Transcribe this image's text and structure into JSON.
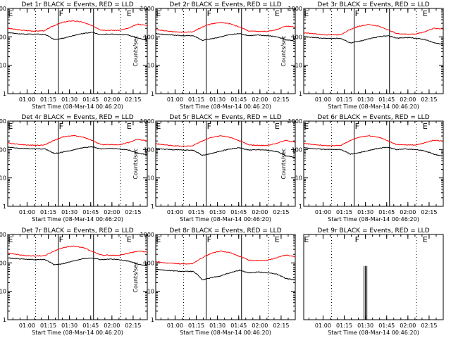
{
  "chart_data": [
    {
      "type": "line",
      "title": "Det 1r BLACK = Events, RED = LLD",
      "xlabel": "Start Time (08-Mar-14 00:46:20)",
      "ylabel": "Counts/sec",
      "yscale": "log",
      "ylim": [
        1,
        1000
      ],
      "xticks": [
        "01:00",
        "01:15",
        "01:30",
        "01:45",
        "02:00",
        "02:15"
      ],
      "yticks": [
        "1",
        "10",
        "100",
        "1000"
      ],
      "markers": [
        {
          "label": "E",
          "time": "00:46"
        },
        {
          "label": "F",
          "time": "01:22"
        },
        {
          "label": "E",
          "time": "02:10"
        }
      ],
      "dotted_lines": [
        "01:06",
        "02:06"
      ],
      "solid_lines": [
        "01:22",
        "01:47"
      ],
      "series": [
        {
          "color": "#ff0000",
          "values": [
            200,
            180,
            165,
            160,
            165,
            250,
            330,
            370,
            330,
            250,
            175,
            170,
            170,
            200,
            280,
            250
          ]
        },
        {
          "color": "#000000",
          "values": [
            140,
            130,
            125,
            125,
            120,
            80,
            90,
            110,
            130,
            145,
            120,
            125,
            120,
            115,
            90,
            75
          ]
        }
      ]
    },
    {
      "type": "line",
      "title": "Det 2r BLACK = Events, RED = LLD",
      "xlabel": "Start Time (08-Mar-14 00:46:20)",
      "ylabel": "Counts/sec",
      "yscale": "log",
      "ylim": [
        1,
        1000
      ],
      "xticks": [
        "01:00",
        "01:15",
        "01:30",
        "01:45",
        "02:00",
        "02:15"
      ],
      "yticks": [
        "1",
        "10",
        "100",
        "1000"
      ],
      "markers": [
        {
          "label": "E",
          "time": "00:46"
        },
        {
          "label": "F",
          "time": "01:22"
        },
        {
          "label": "E",
          "time": "02:10"
        }
      ],
      "dotted_lines": [
        "01:06",
        "02:06"
      ],
      "solid_lines": [
        "01:22",
        "01:47"
      ],
      "series": [
        {
          "color": "#ff0000",
          "values": [
            180,
            165,
            150,
            145,
            150,
            220,
            290,
            320,
            290,
            220,
            160,
            155,
            155,
            180,
            240,
            220
          ]
        },
        {
          "color": "#000000",
          "values": [
            130,
            120,
            115,
            110,
            110,
            75,
            85,
            100,
            120,
            130,
            110,
            115,
            110,
            100,
            80,
            70
          ]
        }
      ]
    },
    {
      "type": "line",
      "title": "Det 3r BLACK = Events, RED = LLD",
      "xlabel": "Start Time (08-Mar-14 00:46:20)",
      "ylabel": "Counts/sec",
      "yscale": "log",
      "ylim": [
        1,
        1000
      ],
      "xticks": [
        "01:00",
        "01:15",
        "01:30",
        "01:45",
        "02:00",
        "02:15"
      ],
      "yticks": [
        "1",
        "10",
        "100",
        "1000"
      ],
      "markers": [
        {
          "label": "E",
          "time": "00:46"
        },
        {
          "label": "F",
          "time": "01:22"
        },
        {
          "label": "E",
          "time": "02:10"
        }
      ],
      "dotted_lines": [
        "01:06",
        "02:06"
      ],
      "solid_lines": [
        "01:22",
        "01:47"
      ],
      "series": [
        {
          "color": "#ff0000",
          "values": [
            140,
            130,
            120,
            118,
            120,
            180,
            240,
            270,
            240,
            180,
            130,
            125,
            125,
            150,
            200,
            190
          ]
        },
        {
          "color": "#000000",
          "values": [
            100,
            95,
            90,
            88,
            88,
            60,
            70,
            85,
            100,
            110,
            90,
            95,
            90,
            80,
            62,
            55
          ]
        }
      ]
    },
    {
      "type": "line",
      "title": "Det 4r BLACK = Events, RED = LLD",
      "xlabel": "Start Time (08-Mar-14 00:46:20)",
      "ylabel": "Counts/sec",
      "yscale": "log",
      "ylim": [
        1,
        1000
      ],
      "xticks": [
        "01:00",
        "01:15",
        "01:30",
        "01:45",
        "02:00",
        "02:15"
      ],
      "yticks": [
        "1",
        "10",
        "100",
        "1000"
      ],
      "markers": [
        {
          "label": "E",
          "time": "00:46"
        },
        {
          "label": "F",
          "time": "01:22"
        },
        {
          "label": "E",
          "time": "02:10"
        }
      ],
      "dotted_lines": [
        "01:06",
        "02:06"
      ],
      "solid_lines": [
        "01:22",
        "01:47"
      ],
      "series": [
        {
          "color": "#ff0000",
          "values": [
            170,
            155,
            145,
            140,
            145,
            210,
            280,
            310,
            280,
            210,
            150,
            148,
            148,
            175,
            230,
            200
          ]
        },
        {
          "color": "#000000",
          "values": [
            120,
            112,
            108,
            105,
            105,
            72,
            82,
            96,
            115,
            125,
            105,
            110,
            105,
            95,
            75,
            65
          ]
        }
      ]
    },
    {
      "type": "line",
      "title": "Det 5r BLACK = Events, RED = LLD",
      "xlabel": "Start Time (08-Mar-14 00:46:20)",
      "ylabel": "Counts/sec",
      "yscale": "log",
      "ylim": [
        1,
        1000
      ],
      "xticks": [
        "01:00",
        "01:15",
        "01:30",
        "01:45",
        "02:00",
        "02:15"
      ],
      "yticks": [
        "1",
        "10",
        "100",
        "1000"
      ],
      "markers": [
        {
          "label": "E",
          "time": "00:46"
        },
        {
          "label": "F",
          "time": "01:22"
        },
        {
          "label": "E",
          "time": "02:10"
        }
      ],
      "dotted_lines": [
        "01:06",
        "02:06"
      ],
      "solid_lines": [
        "01:22",
        "01:47"
      ],
      "series": [
        {
          "color": "#ff0000",
          "values": [
            160,
            145,
            135,
            130,
            135,
            200,
            270,
            300,
            270,
            200,
            145,
            140,
            140,
            165,
            210,
            180
          ]
        },
        {
          "color": "#000000",
          "values": [
            110,
            102,
            98,
            95,
            95,
            62,
            72,
            88,
            105,
            115,
            95,
            100,
            95,
            85,
            60,
            52
          ]
        }
      ]
    },
    {
      "type": "line",
      "title": "Det 6r BLACK = Events, RED = LLD",
      "xlabel": "Start Time (08-Mar-14 00:46:20)",
      "ylabel": "Counts/sec",
      "yscale": "log",
      "ylim": [
        1,
        1000
      ],
      "xticks": [
        "01:00",
        "01:15",
        "01:30",
        "01:45",
        "02:00",
        "02:15"
      ],
      "yticks": [
        "1",
        "10",
        "100",
        "1000"
      ],
      "markers": [
        {
          "label": "E",
          "time": "00:46"
        },
        {
          "label": "F",
          "time": "01:22"
        },
        {
          "label": "E",
          "time": "02:10"
        }
      ],
      "dotted_lines": [
        "01:06",
        "02:06"
      ],
      "solid_lines": [
        "01:22",
        "01:47"
      ],
      "series": [
        {
          "color": "#ff0000",
          "values": [
            165,
            150,
            140,
            135,
            140,
            205,
            275,
            305,
            275,
            205,
            148,
            145,
            145,
            170,
            215,
            195
          ]
        },
        {
          "color": "#000000",
          "values": [
            115,
            108,
            102,
            100,
            100,
            68,
            78,
            92,
            110,
            120,
            100,
            105,
            100,
            90,
            68,
            58
          ]
        }
      ]
    },
    {
      "type": "line",
      "title": "Det 7r BLACK = Events, RED = LLD",
      "xlabel": "Start Time (08-Mar-14 00:46:20)",
      "ylabel": "Counts/sec",
      "yscale": "log",
      "ylim": [
        1,
        1000
      ],
      "xticks": [
        "01:00",
        "01:15",
        "01:30",
        "01:45",
        "02:00",
        "02:15"
      ],
      "yticks": [
        "1",
        "10",
        "100",
        "1000"
      ],
      "markers": [
        {
          "label": "E",
          "time": "00:46"
        },
        {
          "label": "F",
          "time": "01:22"
        },
        {
          "label": "E",
          "time": "02:10"
        }
      ],
      "dotted_lines": [
        "01:06",
        "02:06"
      ],
      "solid_lines": [
        "01:22",
        "01:47"
      ],
      "series": [
        {
          "color": "#ff0000",
          "values": [
            220,
            200,
            180,
            175,
            180,
            260,
            350,
            390,
            350,
            260,
            190,
            185,
            185,
            220,
            260,
            240
          ]
        },
        {
          "color": "#000000",
          "values": [
            150,
            140,
            135,
            130,
            130,
            85,
            95,
            115,
            140,
            150,
            130,
            135,
            130,
            115,
            90,
            80
          ]
        }
      ]
    },
    {
      "type": "line",
      "title": "Det 8r BLACK = Events, RED = LLD",
      "xlabel": "Start Time (08-Mar-14 00:46:20)",
      "ylabel": "Counts/sec",
      "yscale": "log",
      "ylim": [
        1,
        1000
      ],
      "xticks": [
        "01:00",
        "01:15",
        "01:30",
        "01:45",
        "02:00",
        "02:15"
      ],
      "yticks": [
        "1",
        "10",
        "100",
        "1000"
      ],
      "markers": [
        {
          "label": "E",
          "time": "00:46"
        },
        {
          "label": "F",
          "time": "01:22"
        },
        {
          "label": "E",
          "time": "02:10"
        }
      ],
      "dotted_lines": [
        "01:06",
        "02:06"
      ],
      "solid_lines": [
        "01:22",
        "01:47"
      ],
      "series": [
        {
          "color": "#ff0000",
          "values": [
            110,
            100,
            95,
            92,
            95,
            150,
            220,
            260,
            230,
            170,
            125,
            120,
            125,
            150,
            190,
            160
          ]
        },
        {
          "color": "#000000",
          "values": [
            60,
            55,
            52,
            50,
            50,
            25,
            30,
            35,
            45,
            55,
            45,
            48,
            45,
            40,
            28,
            25
          ]
        }
      ]
    },
    {
      "type": "line",
      "title": "Det 9r BLACK = Events, RED = LLD",
      "xlabel": "Start Time (08-Mar-14 00:46:20)",
      "ylabel": "",
      "yscale": "log",
      "ylim": [
        1,
        3
      ],
      "xticks": [
        "01:00",
        "01:15",
        "01:30",
        "01:45",
        "02:00",
        "02:15"
      ],
      "yticks": [],
      "markers": [
        {
          "label": "E",
          "time": "00:46"
        },
        {
          "label": "F",
          "time": "01:22"
        },
        {
          "label": "E",
          "time": "02:10"
        }
      ],
      "dotted_lines": [
        "01:06",
        "02:06"
      ],
      "solid_lines": [],
      "series": [],
      "spikes": [
        "01:29",
        "01:30",
        "01:31"
      ],
      "spike_value": 2
    }
  ]
}
